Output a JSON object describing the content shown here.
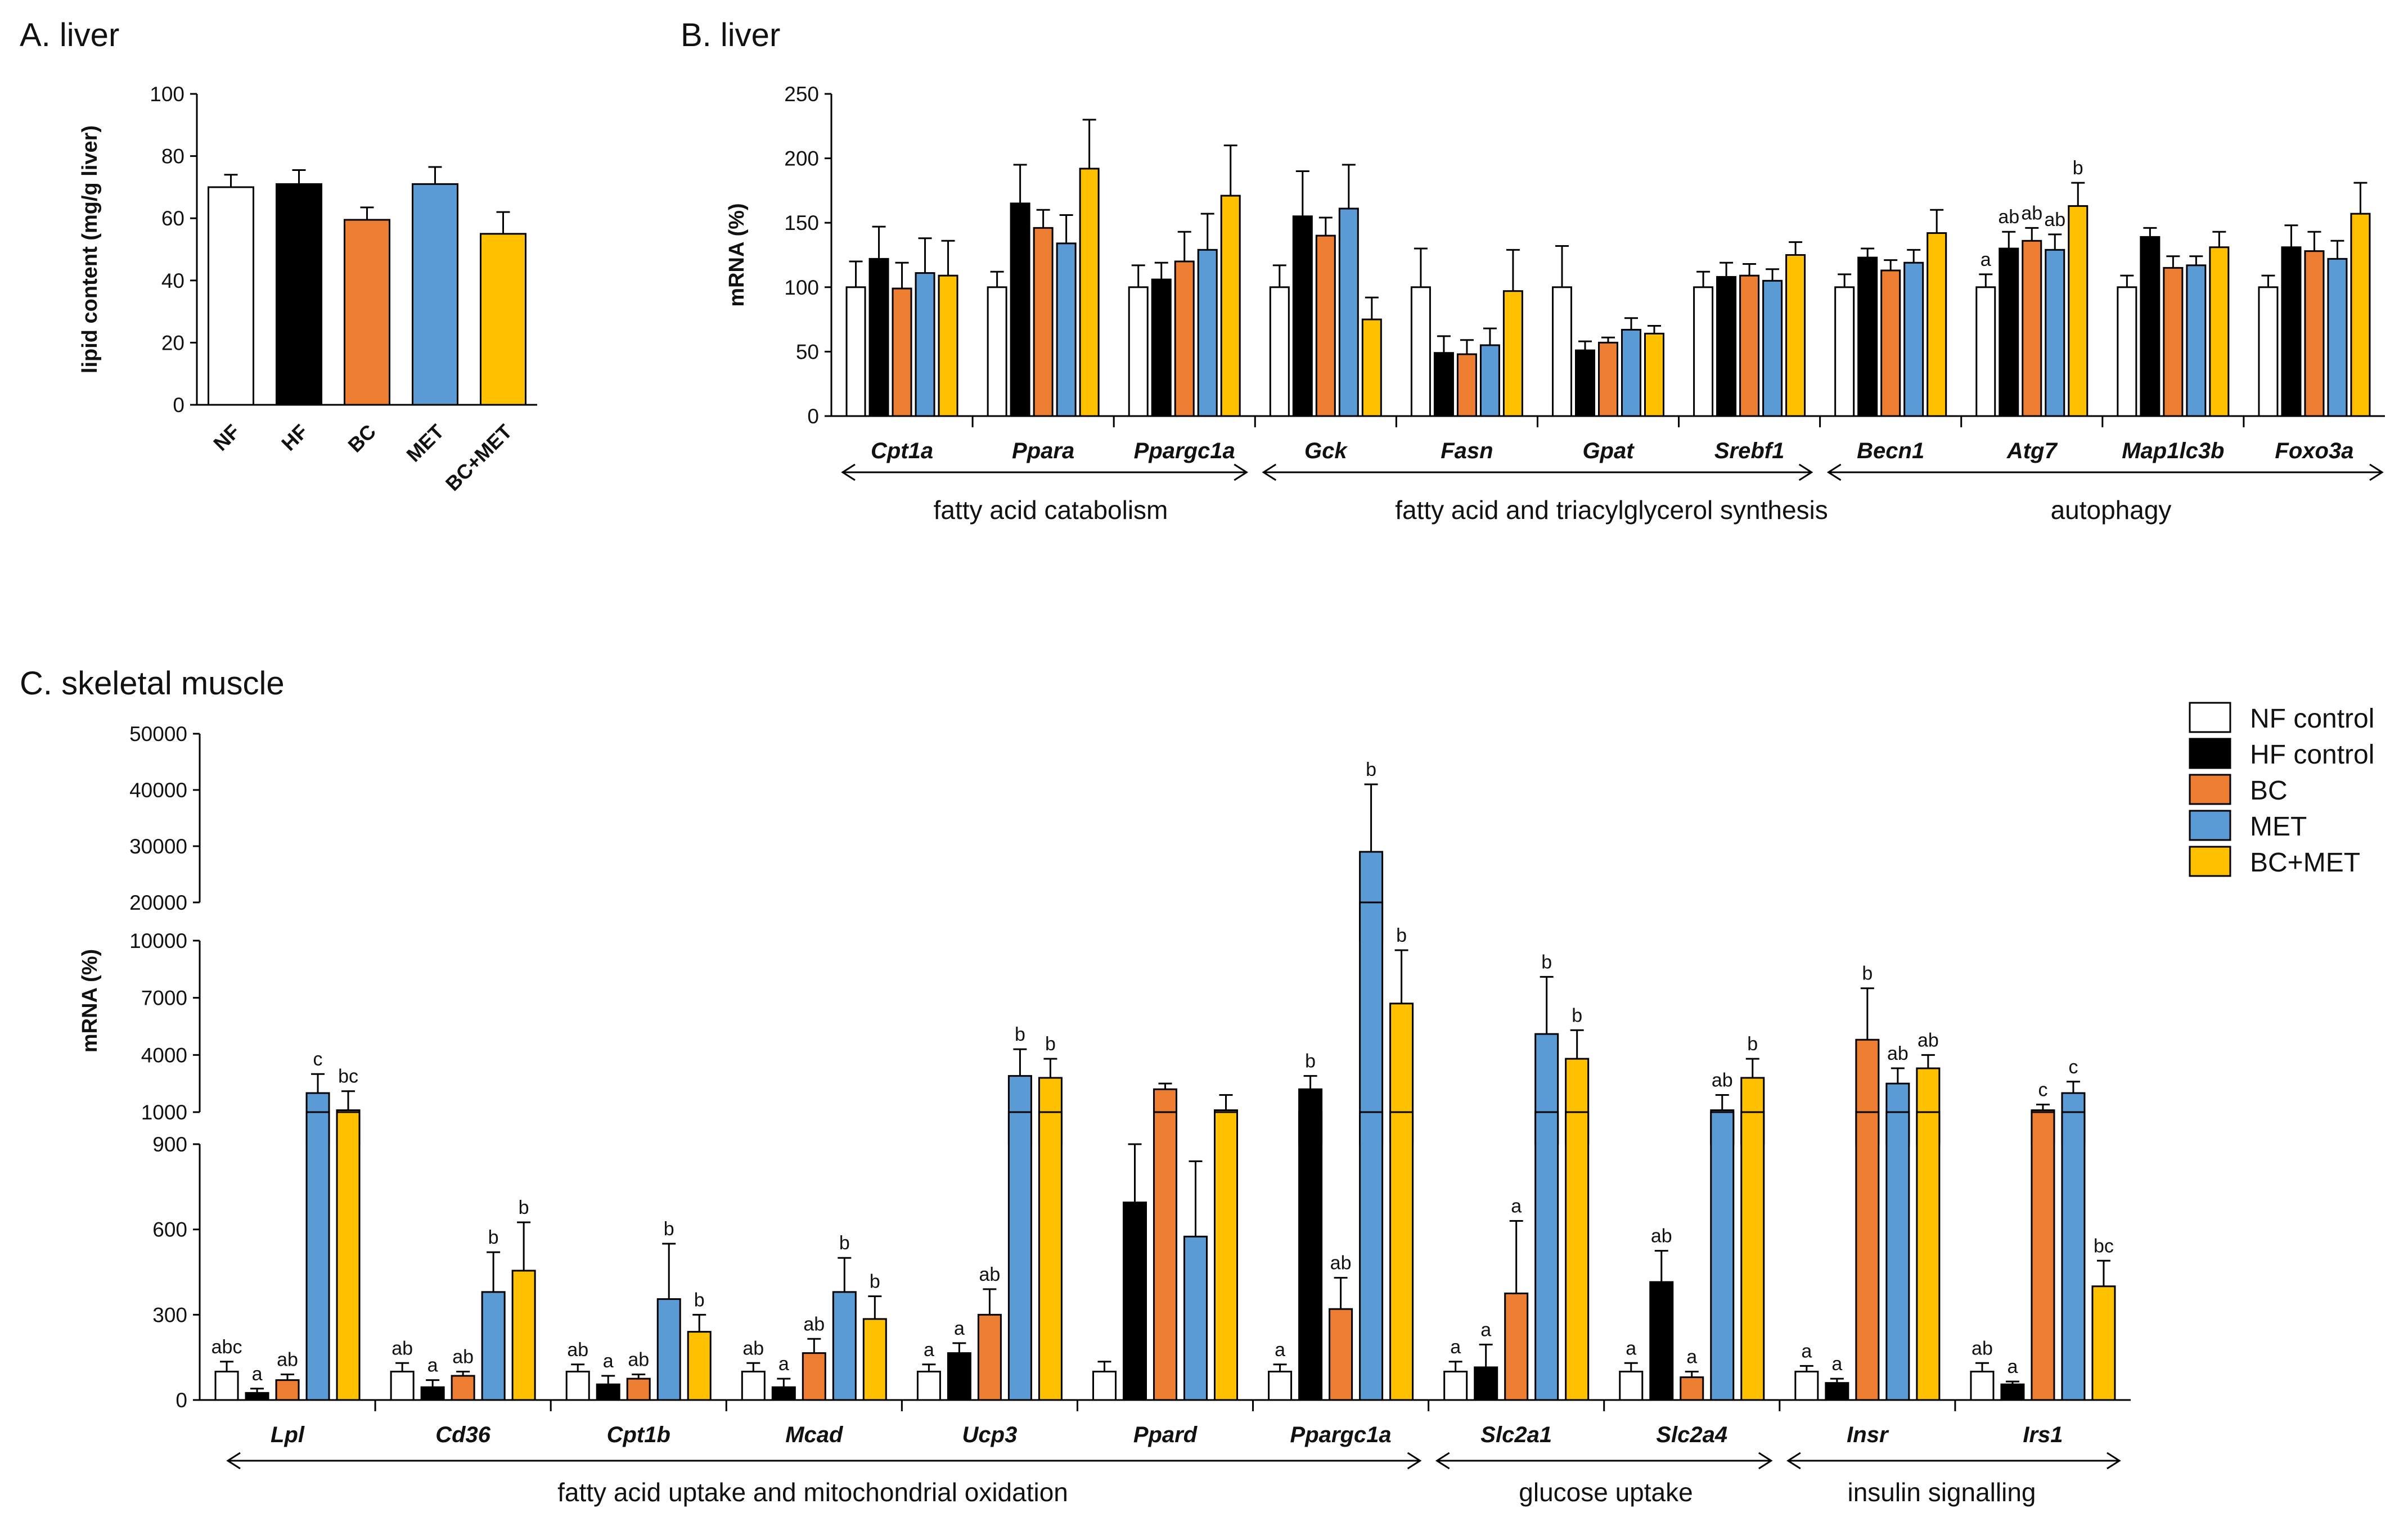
{
  "colors": {
    "NF": "#ffffff",
    "HF": "#000000",
    "BC": "#ED7D31",
    "MET": "#5B9BD5",
    "BCMET": "#FFC000"
  },
  "panel_a": {
    "title": "A. liver"
  },
  "panel_b": {
    "title": "B. liver",
    "groups": [
      "fatty acid catabolism",
      "fatty acid and triacylglycerol synthesis",
      "autophagy"
    ]
  },
  "panel_c": {
    "title": "C. skeletal muscle",
    "groups": [
      "fatty acid uptake and mitochondrial oxidation",
      "glucose uptake",
      "insulin signalling"
    ]
  },
  "legend": {
    "items": [
      "NF control",
      "HF control",
      "BC",
      "MET",
      "BC+MET"
    ]
  },
  "chart_data": [
    {
      "type": "bar",
      "title": "A. liver",
      "ylabel": "lipid content (mg/g liver)",
      "ylim": [
        0,
        100
      ],
      "yticks": [
        0,
        20,
        40,
        60,
        80,
        100
      ],
      "categories": [
        "NF",
        "HF",
        "BC",
        "MET",
        "BC+MET"
      ],
      "values": [
        70,
        71,
        59.5,
        71,
        55
      ],
      "errors": [
        4,
        4.5,
        4,
        5.5,
        7
      ]
    },
    {
      "type": "bar",
      "title": "B. liver",
      "ylabel": "mRNA (%)",
      "ylim": [
        0,
        250
      ],
      "yticks": [
        0,
        50,
        100,
        150,
        200,
        250
      ],
      "series_names": [
        "NF",
        "HF",
        "BC",
        "MET",
        "BC+MET"
      ],
      "categories": [
        "Cpt1a",
        "Ppara",
        "Ppargc1a",
        "Gck",
        "Fasn",
        "Gpat",
        "Srebf1",
        "Becn1",
        "Atg7",
        "Map1lc3b",
        "Foxo3a"
      ],
      "values": [
        [
          100,
          122,
          99,
          111,
          109
        ],
        [
          100,
          165,
          146,
          134,
          192
        ],
        [
          100,
          106,
          120,
          129,
          171
        ],
        [
          100,
          155,
          140,
          161,
          75
        ],
        [
          100,
          49,
          48,
          55,
          97
        ],
        [
          100,
          51,
          57,
          67,
          64
        ],
        [
          100,
          108,
          109,
          105,
          125
        ],
        [
          100,
          123,
          113,
          119,
          142
        ],
        [
          100,
          130,
          136,
          129,
          163
        ],
        [
          100,
          139,
          115,
          117,
          131
        ],
        [
          100,
          131,
          128,
          122,
          157
        ]
      ],
      "errors": [
        [
          20,
          25,
          20,
          27,
          27
        ],
        [
          12,
          30,
          14,
          22,
          38
        ],
        [
          17,
          13,
          23,
          28,
          39
        ],
        [
          17,
          35,
          14,
          34,
          17
        ],
        [
          30,
          13,
          11,
          13,
          32
        ],
        [
          32,
          7,
          4,
          9,
          6
        ],
        [
          12,
          11,
          9,
          9,
          10
        ],
        [
          10,
          7,
          8,
          10,
          18
        ],
        [
          10,
          13,
          10,
          12,
          18
        ],
        [
          9,
          7,
          9,
          7,
          12
        ],
        [
          9,
          17,
          15,
          14,
          24
        ]
      ],
      "letters": {
        "Atg7": [
          "a",
          "ab",
          "ab",
          "ab",
          "b"
        ]
      }
    },
    {
      "type": "bar",
      "title": "C. skeletal muscle",
      "ylabel": "mRNA (%)",
      "yaxis": "broken",
      "yticks": [
        0,
        300,
        600,
        900,
        1000,
        4000,
        7000,
        10000,
        20000,
        30000,
        40000,
        50000
      ],
      "series_names": [
        "NF control",
        "HF control",
        "BC",
        "MET",
        "BC+MET"
      ],
      "categories": [
        "Lpl",
        "Cd36",
        "Cpt1b",
        "Mcad",
        "Ucp3",
        "Ppard",
        "Ppargc1a",
        "Slc2a1",
        "Slc2a4",
        "Insr",
        "Irs1"
      ],
      "values": [
        [
          100,
          25,
          70,
          2000,
          1100
        ],
        [
          100,
          45,
          85,
          380,
          455
        ],
        [
          100,
          55,
          75,
          355,
          240
        ],
        [
          100,
          45,
          165,
          380,
          285
        ],
        [
          100,
          165,
          300,
          2900,
          2800
        ],
        [
          100,
          695,
          2200,
          575,
          1100
        ],
        [
          100,
          2200,
          320,
          29000,
          6700
        ],
        [
          100,
          115,
          375,
          5100,
          3800
        ],
        [
          100,
          415,
          80,
          1100,
          2800
        ],
        [
          100,
          60,
          4800,
          2500,
          3300
        ],
        [
          100,
          55,
          1100,
          2000,
          400
        ]
      ],
      "errors": [
        [
          35,
          15,
          20,
          1000,
          1000
        ],
        [
          30,
          25,
          15,
          140,
          170
        ],
        [
          25,
          30,
          15,
          195,
          60
        ],
        [
          30,
          30,
          50,
          120,
          80
        ],
        [
          25,
          35,
          90,
          1400,
          1000
        ],
        [
          35,
          210,
          300,
          265,
          800
        ],
        [
          25,
          700,
          110,
          12000,
          2800
        ],
        [
          35,
          80,
          255,
          3000,
          1500
        ],
        [
          30,
          110,
          20,
          800,
          1000
        ],
        [
          20,
          15,
          2700,
          800,
          700
        ],
        [
          30,
          10,
          300,
          600,
          90
        ]
      ],
      "letters": {
        "Lpl": [
          "abc",
          "a",
          "ab",
          "c",
          "bc"
        ],
        "Cd36": [
          "ab",
          "a",
          "ab",
          "b",
          "b"
        ],
        "Cpt1b": [
          "ab",
          "a",
          "ab",
          "b",
          "b"
        ],
        "Mcad": [
          "ab",
          "a",
          "ab",
          "b",
          "b"
        ],
        "Ucp3": [
          "a",
          "a",
          "ab",
          "b",
          "b"
        ],
        "Ppard": [
          "",
          "",
          "",
          "",
          ""
        ],
        "Ppargc1a": [
          "a",
          "b",
          "ab",
          "b",
          "b"
        ],
        "Slc2a1": [
          "a",
          "a",
          "a",
          "b",
          "b"
        ],
        "Slc2a4": [
          "a",
          "ab",
          "a",
          "ab",
          "b"
        ],
        "Insr": [
          "a",
          "a",
          "b",
          "ab",
          "ab"
        ],
        "Irs1": [
          "ab",
          "a",
          "c",
          "c",
          "bc"
        ]
      }
    }
  ]
}
